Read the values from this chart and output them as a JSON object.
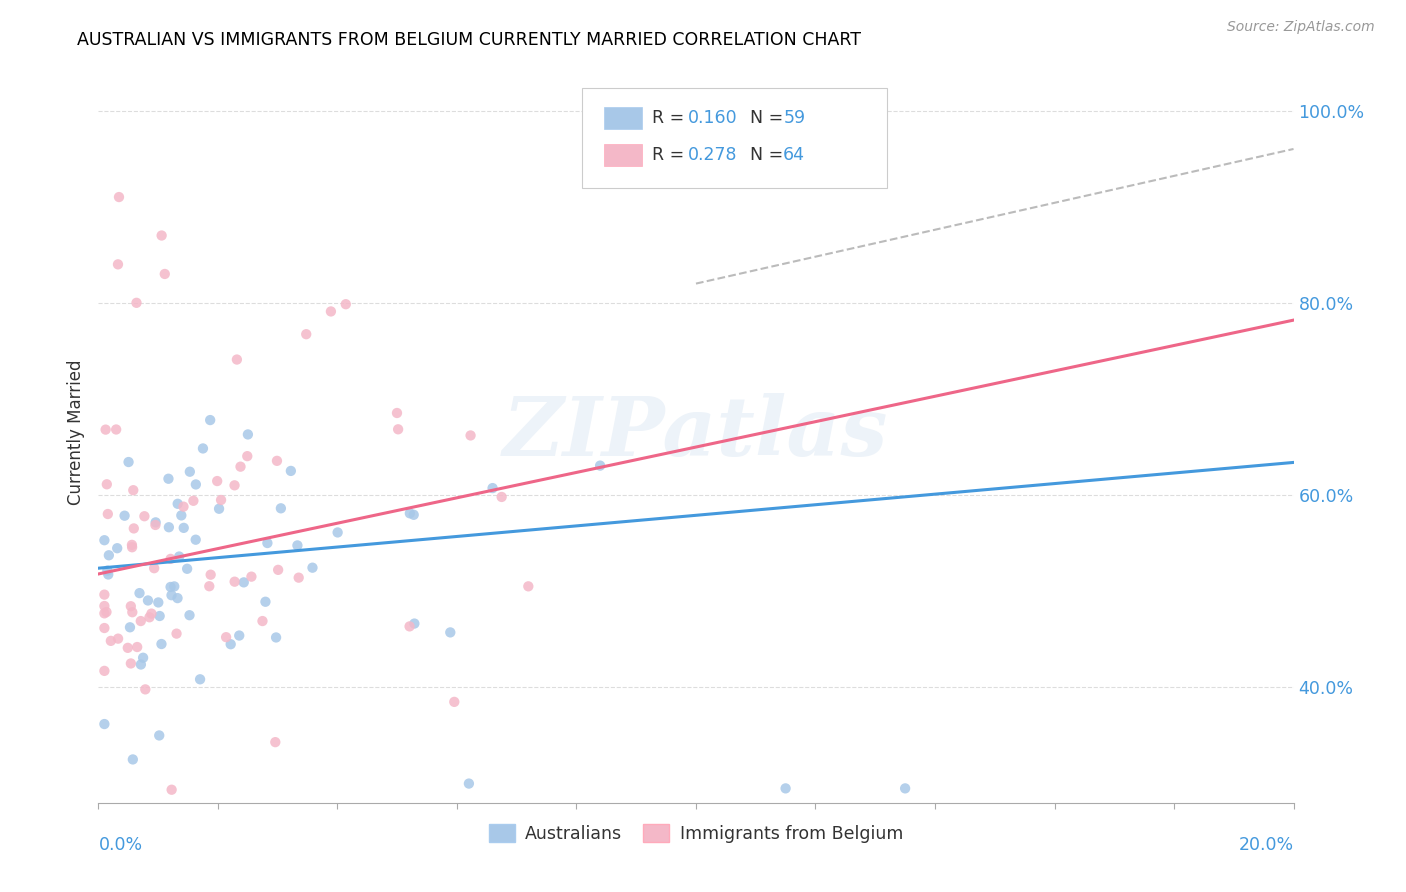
{
  "title": "AUSTRALIAN VS IMMIGRANTS FROM BELGIUM CURRENTLY MARRIED CORRELATION CHART",
  "source": "Source: ZipAtlas.com",
  "ylabel": "Currently Married",
  "watermark": "ZIPatlas",
  "legend_label1": "Australians",
  "legend_label2": "Immigrants from Belgium",
  "blue_color": "#a8c8e8",
  "pink_color": "#f4b8c8",
  "blue_line_color": "#4499dd",
  "pink_line_color": "#ee6688",
  "dash_line_color": "#bbbbbb",
  "text_color": "#4499dd",
  "r1": 0.16,
  "n1": 59,
  "r2": 0.278,
  "n2": 64,
  "x_min": 0.0,
  "x_max": 0.2,
  "y_min": 0.28,
  "y_max": 1.05,
  "y_ticks": [
    0.4,
    0.6,
    0.8,
    1.0
  ],
  "y_tick_labels": [
    "40.0%",
    "60.0%",
    "80.0%",
    "100.0%"
  ],
  "blue_trend_x": [
    0.0,
    0.2
  ],
  "blue_trend_y": [
    0.524,
    0.634
  ],
  "pink_trend_x": [
    0.0,
    0.2
  ],
  "pink_trend_y": [
    0.518,
    0.782
  ],
  "dash_trend_x": [
    0.1,
    0.2
  ],
  "dash_trend_y": [
    0.82,
    0.96
  ]
}
